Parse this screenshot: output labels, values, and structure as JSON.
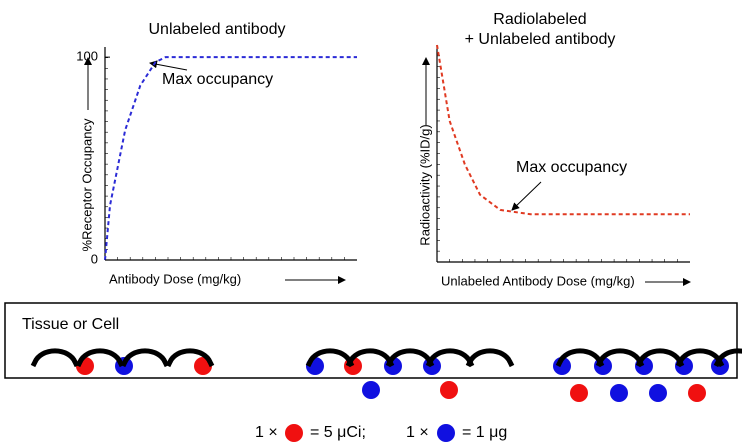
{
  "chart_data": [
    {
      "type": "line",
      "title": "Unlabeled antibody",
      "x_label": "Antibody Dose (mg/kg)",
      "y_label": "%Receptor Occupancy",
      "x": [
        0,
        0.2,
        0.8,
        1.4,
        2.0,
        2.4,
        10
      ],
      "series": [
        {
          "color": "#2b2bd6",
          "values": [
            0,
            27,
            64,
            86,
            97.5,
            100,
            100
          ]
        }
      ],
      "xlim": [
        0,
        10
      ],
      "ylim": [
        0,
        105
      ],
      "yticks": [
        0,
        100
      ],
      "dashed": true,
      "annotations": [
        "Max occupancy"
      ]
    },
    {
      "type": "line",
      "title": [
        "Radiolabeled",
        "+ Unlabeled antibody"
      ],
      "x_label": "Unlabeled Antibody Dose (mg/kg)",
      "y_label": "Radioactivity (%ID/g)",
      "x": [
        0,
        0.5,
        1.1,
        1.7,
        2.5,
        3.7,
        10
      ],
      "series": [
        {
          "color": "#e03a22",
          "values": [
            100,
            65,
            45,
            31,
            24,
            22,
            22
          ]
        }
      ],
      "xlim": [
        0,
        10
      ],
      "ylim": [
        0,
        100
      ],
      "yticks": [],
      "dashed": true,
      "annotations": [
        "Max occupancy"
      ]
    }
  ],
  "diagram": {
    "box_label": "Tissue or Cell",
    "legend": [
      "1 ×",
      "= 5 μCi;",
      "1 ×",
      "= 1 μg"
    ]
  }
}
